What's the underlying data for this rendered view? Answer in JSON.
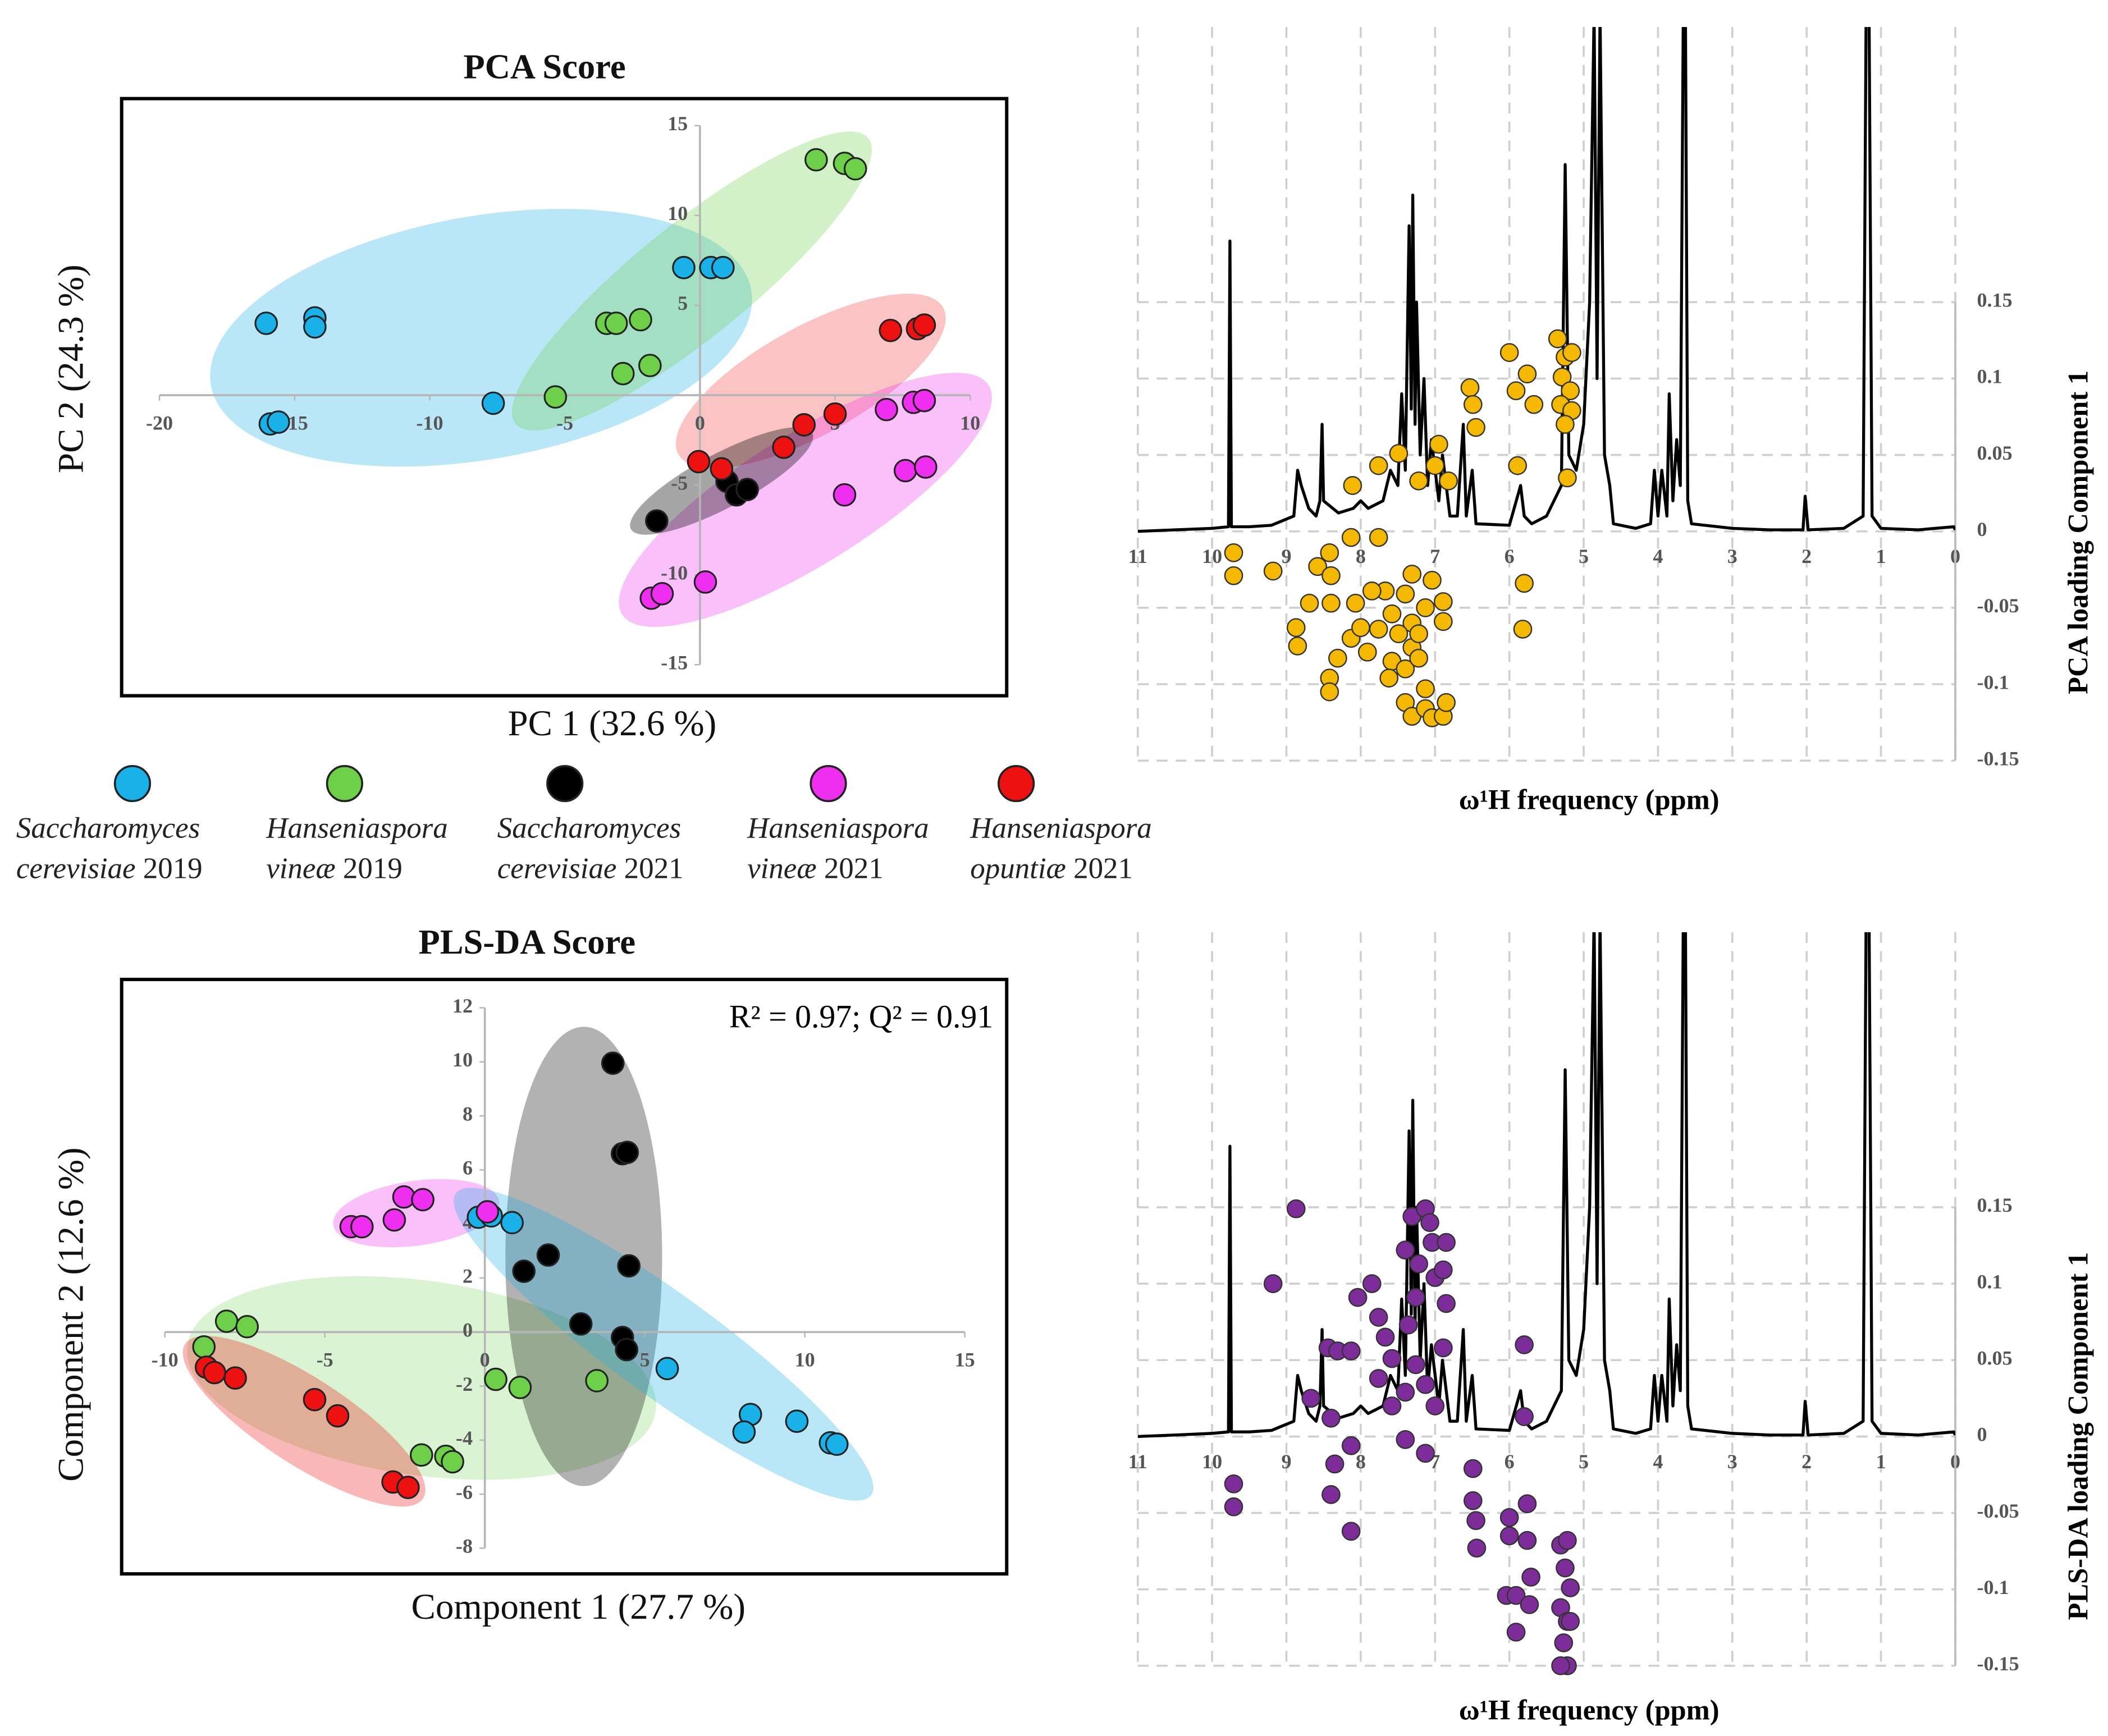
{
  "chart_data": [
    {
      "type": "scatter",
      "title": "PCA Score",
      "x_label": "PC 1 (32.6 %)",
      "y_label": "PC 2 (24.3 %)",
      "xlim": [
        -20,
        10
      ],
      "ylim": [
        -15,
        15
      ],
      "xticks": [
        -20,
        -15,
        -10,
        -5,
        0,
        5,
        10
      ],
      "yticks": [
        -15,
        -10,
        -5,
        5,
        10,
        15
      ],
      "series": [
        {
          "name": "Saccharomyces cerevisiae 2019",
          "color": "#1ab0e8",
          "x": [
            -16.05,
            -14.25,
            -14.25,
            -15.9,
            -15.6,
            -7.65,
            -0.6,
            0.4,
            0.85
          ],
          "values": [
            4.0,
            4.3,
            3.8,
            -1.6,
            -1.5,
            -0.45,
            7.1,
            7.1,
            7.1
          ]
        },
        {
          "name": "Hanseniaspora vineæ 2019",
          "color": "#6dcf4a",
          "x": [
            4.3,
            5.35,
            5.75,
            -3.45,
            -3.1,
            -2.2,
            -2.85,
            -1.85,
            -5.35
          ],
          "values": [
            13.1,
            12.9,
            12.6,
            4.0,
            4.0,
            4.2,
            1.2,
            1.65,
            -0.1
          ]
        },
        {
          "name": "Saccharomyces cerevisiae 2021",
          "color": "#000000",
          "x": [
            -1.6,
            1.0,
            1.35,
            1.75
          ],
          "values": [
            -7.0,
            -4.8,
            -5.55,
            -5.25
          ]
        },
        {
          "name": "Hanseniaspora vineæ 2021",
          "color": "#ef2fef",
          "x": [
            6.9,
            7.9,
            8.3,
            7.6,
            8.35,
            5.35,
            0.2,
            -1.8,
            -1.4
          ],
          "values": [
            -0.8,
            -0.4,
            -0.3,
            -4.2,
            -4.0,
            -5.55,
            -10.4,
            -11.3,
            -11.05
          ]
        },
        {
          "name": "Hanseniaspora opuntiæ 2021",
          "color": "#ee1111",
          "x": [
            7.05,
            8.05,
            8.3,
            5.0,
            3.85,
            3.1,
            -0.05,
            0.8
          ],
          "values": [
            3.6,
            3.7,
            3.9,
            -1.05,
            -1.65,
            -2.9,
            -3.7,
            -4.1
          ]
        }
      ]
    },
    {
      "type": "loading",
      "x_label": "ω¹H frequency (ppm)",
      "y_label": "PCA loading  Component 1",
      "xlim": [
        11,
        0
      ],
      "ylim": [
        -0.15,
        0.33
      ],
      "xticks": [
        11,
        10,
        9,
        8,
        7,
        6,
        5,
        4,
        3,
        2,
        1,
        0
      ],
      "yticks": [
        0.15,
        0.1,
        0.05,
        0,
        -0.05,
        -0.1,
        -0.15
      ],
      "grid": true,
      "spectrum": {
        "color": "#000000",
        "x": [
          11,
          10.5,
          10,
          9.78,
          9.76,
          9.74,
          9.5,
          9.2,
          9.1,
          8.9,
          8.85,
          8.8,
          8.7,
          8.6,
          8.55,
          8.52,
          8.5,
          8.3,
          8.1,
          8.0,
          7.9,
          7.7,
          7.6,
          7.5,
          7.45,
          7.4,
          7.35,
          7.32,
          7.3,
          7.27,
          7.25,
          7.2,
          7.15,
          7.1,
          7.05,
          6.95,
          6.9,
          6.8,
          6.7,
          6.62,
          6.58,
          6.5,
          6.45,
          6.0,
          5.85,
          5.8,
          5.7,
          5.5,
          5.4,
          5.3,
          5.25,
          5.2,
          5.1,
          5.0,
          4.92,
          4.86,
          4.82,
          4.78,
          4.72,
          4.65,
          4.6,
          4.3,
          4.1,
          4.05,
          4.0,
          3.95,
          3.88,
          3.85,
          3.8,
          3.75,
          3.7,
          3.66,
          3.63,
          3.6,
          3.55,
          3.0,
          2.5,
          2.05,
          2.02,
          1.98,
          1.5,
          1.24,
          1.2,
          1.16,
          1.12,
          1.0,
          0.5,
          0.02,
          0
        ],
        "values": [
          0,
          0.001,
          0.002,
          0.003,
          0.19,
          0.003,
          0.003,
          0.004,
          0.006,
          0.01,
          0.04,
          0.03,
          0.015,
          0.01,
          0.02,
          0.07,
          0.02,
          0.012,
          0.015,
          0.02,
          0.015,
          0.02,
          0.04,
          0.03,
          0.09,
          0.04,
          0.2,
          0.08,
          0.22,
          0.07,
          0.15,
          0.05,
          0.1,
          0.03,
          0.06,
          0.02,
          0.05,
          0.01,
          0.01,
          0.07,
          0.01,
          0.04,
          0.005,
          0.004,
          0.03,
          0.01,
          0.005,
          0.01,
          0.02,
          0.03,
          0.24,
          0.05,
          0.04,
          0.07,
          0.15,
          0.34,
          0.1,
          0.34,
          0.05,
          0.03,
          0.005,
          0.002,
          0.005,
          0.04,
          0.01,
          0.04,
          0.01,
          0.09,
          0.02,
          0.06,
          0.03,
          0.34,
          0.34,
          0.02,
          0.005,
          0.002,
          0.001,
          0.001,
          0.023,
          0.001,
          0.002,
          0.01,
          0.34,
          0.34,
          0.01,
          0.002,
          0.001,
          0.003,
          0.001
        ]
      },
      "points": {
        "color": "#f5b800",
        "x": [
          9.71,
          9.71,
          9.18,
          8.58,
          8.42,
          8.4,
          8.69,
          8.4,
          8.87,
          8.85,
          8.31,
          8.42,
          8.42,
          8.13,
          8.07,
          8.0,
          7.91,
          7.58,
          7.67,
          7.85,
          7.4,
          7.31,
          7.76,
          7.49,
          7.58,
          7.62,
          7.4,
          7.31,
          7.22,
          7.4,
          7.31,
          7.13,
          7.04,
          6.89,
          6.85,
          7.13,
          7.22,
          7.13,
          6.89,
          6.89,
          7.04,
          7.31,
          8.13,
          7.76,
          8.11,
          7.76,
          7.49,
          7.22,
          7.0,
          6.95,
          6.82,
          6.53,
          6.49,
          6.45,
          6.0,
          5.91,
          5.76,
          5.67,
          5.89,
          5.8,
          5.82,
          5.35,
          5.25,
          5.16,
          5.29,
          5.18,
          5.31,
          5.16,
          5.25,
          5.22
        ],
        "values": [
          -0.014,
          -0.029,
          -0.026,
          -0.023,
          -0.014,
          -0.029,
          -0.047,
          -0.047,
          -0.063,
          -0.075,
          -0.083,
          -0.096,
          -0.105,
          -0.07,
          -0.047,
          -0.063,
          -0.079,
          -0.054,
          -0.039,
          -0.039,
          -0.041,
          -0.06,
          -0.064,
          -0.067,
          -0.085,
          -0.096,
          -0.09,
          -0.076,
          -0.083,
          -0.112,
          -0.121,
          -0.116,
          -0.122,
          -0.121,
          -0.112,
          -0.103,
          -0.067,
          -0.05,
          -0.046,
          -0.059,
          -0.032,
          -0.028,
          -0.004,
          -0.004,
          0.03,
          0.043,
          0.051,
          0.033,
          0.043,
          0.057,
          0.033,
          0.094,
          0.083,
          0.068,
          0.117,
          0.092,
          0.103,
          0.083,
          0.043,
          -0.034,
          -0.064,
          0.126,
          0.114,
          0.117,
          0.101,
          0.092,
          0.083,
          0.079,
          0.07,
          0.035
        ]
      }
    },
    {
      "type": "scatter",
      "title": "PLS-DA Score",
      "x_label": "Component 1 (27.7 %)",
      "y_label": "Component 2 (12.6 %)",
      "annotation": "R² = 0.97; Q² = 0.91",
      "xlim": [
        -10,
        15
      ],
      "ylim": [
        -8,
        12
      ],
      "xticks": [
        -10,
        -5,
        0,
        5,
        10,
        15
      ],
      "yticks": [
        -8,
        -6,
        -4,
        -2,
        0,
        2,
        4,
        6,
        8,
        10,
        12
      ],
      "series": [
        {
          "color": "#1ab0e8",
          "x": [
            -0.2,
            0.2,
            0.85,
            5.7,
            8.3,
            8.1,
            9.75,
            10.8,
            11.0
          ],
          "values": [
            4.25,
            4.3,
            4.05,
            -1.35,
            -3.05,
            -3.7,
            -3.3,
            -4.1,
            -4.15
          ]
        },
        {
          "color": "#6dcf4a",
          "x": [
            -8.07,
            -7.43,
            -8.78,
            0.34,
            1.1,
            3.5,
            -1.98,
            -1.22,
            -1.01
          ],
          "values": [
            0.4,
            0.2,
            -0.55,
            -1.75,
            -2.05,
            -1.8,
            -4.55,
            -4.6,
            -4.8
          ]
        },
        {
          "color": "#000000",
          "x": [
            4.0,
            4.3,
            4.45,
            4.5,
            1.98,
            1.22,
            3.0,
            4.3,
            4.43
          ],
          "values": [
            9.95,
            6.6,
            6.65,
            2.45,
            2.85,
            2.25,
            0.3,
            -0.2,
            -0.65
          ]
        },
        {
          "color": "#ef2fef",
          "x": [
            -4.18,
            -3.84,
            -2.83,
            -2.53,
            -1.94,
            0.08
          ],
          "values": [
            3.9,
            3.9,
            4.15,
            5.0,
            4.9,
            4.45
          ]
        },
        {
          "color": "#ee1111",
          "x": [
            -8.7,
            -8.45,
            -7.8,
            -5.32,
            -4.6,
            -2.87,
            -2.4
          ],
          "values": [
            -1.3,
            -1.5,
            -1.7,
            -2.5,
            -3.1,
            -5.55,
            -5.75
          ]
        }
      ]
    },
    {
      "type": "loading",
      "x_label": "ω¹H frequency (ppm)",
      "y_label": "PLS-DA loading  Component 1",
      "xlim": [
        11,
        0
      ],
      "ylim": [
        -0.15,
        0.33
      ],
      "xticks": [
        11,
        10,
        9,
        8,
        7,
        6,
        5,
        4,
        3,
        2,
        1,
        0
      ],
      "yticks": [
        0.15,
        0.1,
        0.05,
        0,
        -0.05,
        -0.1,
        -0.15
      ],
      "grid": true,
      "spectrum": {
        "color": "#000000",
        "x": [
          11,
          10.5,
          10,
          9.78,
          9.76,
          9.74,
          9.5,
          9.2,
          9.1,
          8.9,
          8.85,
          8.8,
          8.7,
          8.6,
          8.55,
          8.52,
          8.5,
          8.3,
          8.1,
          8.0,
          7.9,
          7.7,
          7.6,
          7.5,
          7.45,
          7.4,
          7.35,
          7.32,
          7.3,
          7.27,
          7.25,
          7.2,
          7.15,
          7.1,
          7.05,
          6.95,
          6.9,
          6.8,
          6.7,
          6.62,
          6.58,
          6.5,
          6.45,
          6.0,
          5.85,
          5.8,
          5.7,
          5.5,
          5.4,
          5.3,
          5.25,
          5.2,
          5.1,
          5.0,
          4.92,
          4.86,
          4.82,
          4.78,
          4.72,
          4.65,
          4.6,
          4.3,
          4.1,
          4.05,
          4.0,
          3.95,
          3.88,
          3.85,
          3.8,
          3.75,
          3.7,
          3.66,
          3.63,
          3.6,
          3.55,
          3.0,
          2.5,
          2.05,
          2.02,
          1.98,
          1.5,
          1.24,
          1.2,
          1.16,
          1.12,
          1.0,
          0.5,
          0.02,
          0
        ],
        "values": [
          0,
          0.001,
          0.002,
          0.003,
          0.19,
          0.003,
          0.003,
          0.004,
          0.006,
          0.01,
          0.04,
          0.03,
          0.015,
          0.01,
          0.02,
          0.07,
          0.02,
          0.012,
          0.015,
          0.02,
          0.015,
          0.02,
          0.04,
          0.03,
          0.09,
          0.04,
          0.2,
          0.08,
          0.22,
          0.07,
          0.15,
          0.05,
          0.1,
          0.03,
          0.06,
          0.02,
          0.05,
          0.01,
          0.01,
          0.07,
          0.01,
          0.04,
          0.005,
          0.004,
          0.03,
          0.01,
          0.005,
          0.01,
          0.02,
          0.03,
          0.24,
          0.05,
          0.04,
          0.07,
          0.15,
          0.34,
          0.1,
          0.34,
          0.05,
          0.03,
          0.005,
          0.002,
          0.005,
          0.04,
          0.01,
          0.04,
          0.01,
          0.09,
          0.02,
          0.06,
          0.03,
          0.34,
          0.34,
          0.02,
          0.005,
          0.002,
          0.001,
          0.001,
          0.023,
          0.001,
          0.002,
          0.01,
          0.34,
          0.34,
          0.01,
          0.002,
          0.001,
          0.003,
          0.001
        ]
      },
      "points": {
        "color": "#7d2d9a",
        "x": [
          9.71,
          9.71,
          9.18,
          8.87,
          8.44,
          8.31,
          8.67,
          8.4,
          8.35,
          8.4,
          8.13,
          8.13,
          8.13,
          8.04,
          7.85,
          7.76,
          7.67,
          7.58,
          7.76,
          7.58,
          7.4,
          7.4,
          7.31,
          7.22,
          7.26,
          7.36,
          7.26,
          7.13,
          7.13,
          7.07,
          7.04,
          7.0,
          6.85,
          6.89,
          6.85,
          6.89,
          7.0,
          7.13,
          7.4,
          6.49,
          6.49,
          6.45,
          6.44,
          5.8,
          5.8,
          6.0,
          6.0,
          5.76,
          5.76,
          5.71,
          6.04,
          5.91,
          5.73,
          5.91,
          5.31,
          5.22,
          5.25,
          5.18,
          5.31,
          5.22,
          5.27,
          5.22,
          5.31,
          5.18
        ],
        "values": [
          -0.031,
          -0.046,
          0.1,
          0.149,
          0.058,
          0.056,
          0.025,
          0.012,
          -0.018,
          -0.038,
          -0.062,
          -0.006,
          0.056,
          0.091,
          0.1,
          0.078,
          0.065,
          0.051,
          0.038,
          0.02,
          0.029,
          0.122,
          0.144,
          0.113,
          0.091,
          0.073,
          0.047,
          0.034,
          0.149,
          0.14,
          0.127,
          0.104,
          0.127,
          0.109,
          0.087,
          0.058,
          0.02,
          -0.011,
          -0.002,
          -0.021,
          -0.042,
          -0.055,
          -0.073,
          0.06,
          0.013,
          -0.053,
          -0.065,
          -0.044,
          -0.068,
          -0.092,
          -0.104,
          -0.104,
          -0.11,
          -0.128,
          -0.071,
          -0.068,
          -0.086,
          -0.099,
          -0.112,
          -0.121,
          -0.135,
          -0.15,
          -0.15,
          -0.121
        ]
      }
    }
  ]
}
